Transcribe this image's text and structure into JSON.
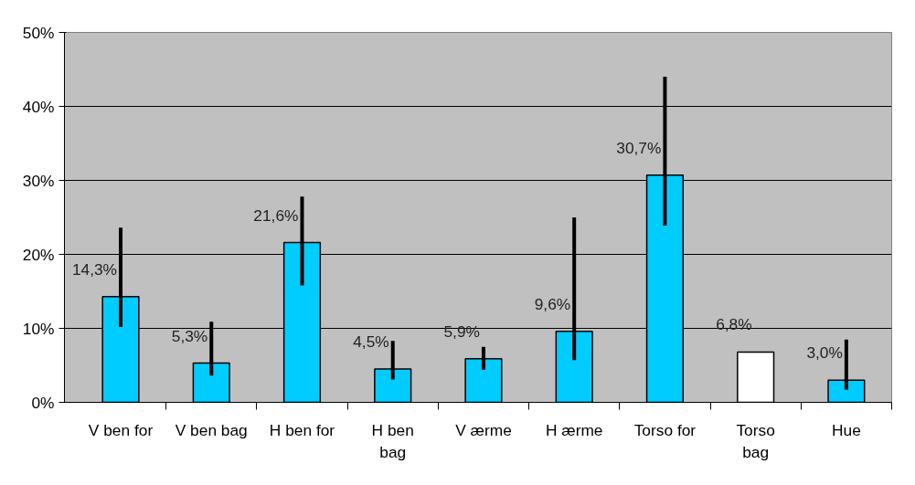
{
  "chart_data": {
    "type": "bar",
    "categories": [
      "V ben for",
      "V ben bag",
      "H ben for",
      "H ben\nbag",
      "V ærme",
      "H ærme",
      "Torso for",
      "Torso\nbag",
      "Hue"
    ],
    "values": [
      14.3,
      5.3,
      21.6,
      4.5,
      5.9,
      9.6,
      30.7,
      6.8,
      3.0
    ],
    "colors": [
      "#00ccff",
      "#00ccff",
      "#00ccff",
      "#00ccff",
      "#00ccff",
      "#00ccff",
      "#00ccff",
      "#ffffff",
      "#00ccff"
    ],
    "value_labels": [
      "14,3%",
      "5,3%",
      "21,6%",
      "4,5%",
      "5,9%",
      "9,6%",
      "30,7%",
      "6,8%",
      "3,0%"
    ],
    "errors": [
      [
        10.2,
        23.6
      ],
      [
        3.6,
        10.9
      ],
      [
        15.8,
        27.8
      ],
      [
        3.1,
        8.3
      ],
      [
        4.4,
        7.5
      ],
      [
        5.7,
        25.0
      ],
      [
        23.9,
        44.0
      ],
      null,
      [
        1.7,
        8.5
      ]
    ],
    "ylim": [
      0,
      50
    ],
    "yticks": [
      {
        "value": 0,
        "label": "0%"
      },
      {
        "value": 10,
        "label": "10%"
      },
      {
        "value": 20,
        "label": "20%"
      },
      {
        "value": 30,
        "label": "30%"
      },
      {
        "value": 40,
        "label": "40%"
      },
      {
        "value": 50,
        "label": "50%"
      }
    ],
    "grid": "y"
  }
}
